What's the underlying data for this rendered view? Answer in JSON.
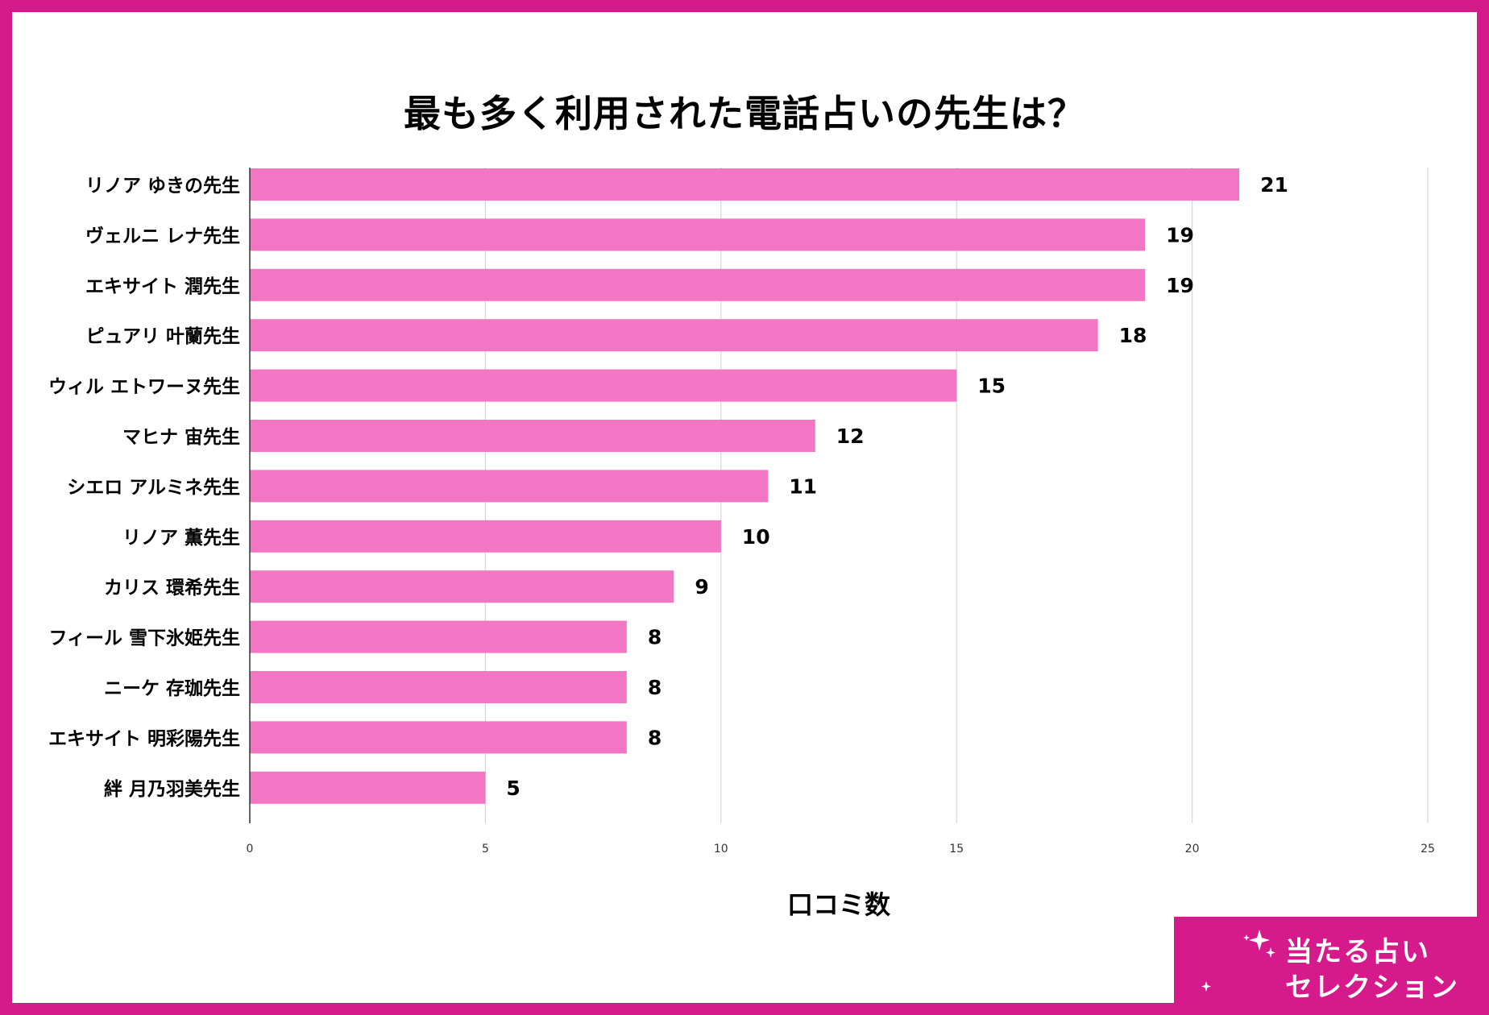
{
  "chart_data": {
    "type": "bar",
    "orientation": "horizontal",
    "title": "最も多く利用された電話占いの先生は？",
    "xlabel": "口コミ数",
    "ylabel": "",
    "xlim": [
      0,
      25
    ],
    "xticks": [
      0,
      5,
      10,
      15,
      20,
      25
    ],
    "grid": true,
    "legend": "none",
    "bar_color": "#f276c4",
    "categories": [
      "リノア ゆきの先生",
      "ヴェルニ レナ先生",
      "エキサイト 潤先生",
      "ピュアリ 叶蘭先生",
      "ウィル エトワーヌ先生",
      "マヒナ 宙先生",
      "シエロ アルミネ先生",
      "リノア 薫先生",
      "カリス 環希先生",
      "フィール 雪下氷姫先生",
      "ニーケ 存珈先生",
      "エキサイト 明彩陽先生",
      "絆 月乃羽美先生"
    ],
    "values": [
      21,
      19,
      19,
      18,
      15,
      12,
      11,
      10,
      9,
      8,
      8,
      8,
      5
    ]
  },
  "branding": {
    "frame_color": "#d61a8c",
    "logo_line1": "当たる占い",
    "logo_line2": "セレクション",
    "logo_icon": "crescent-moon-with-stars-icon"
  }
}
